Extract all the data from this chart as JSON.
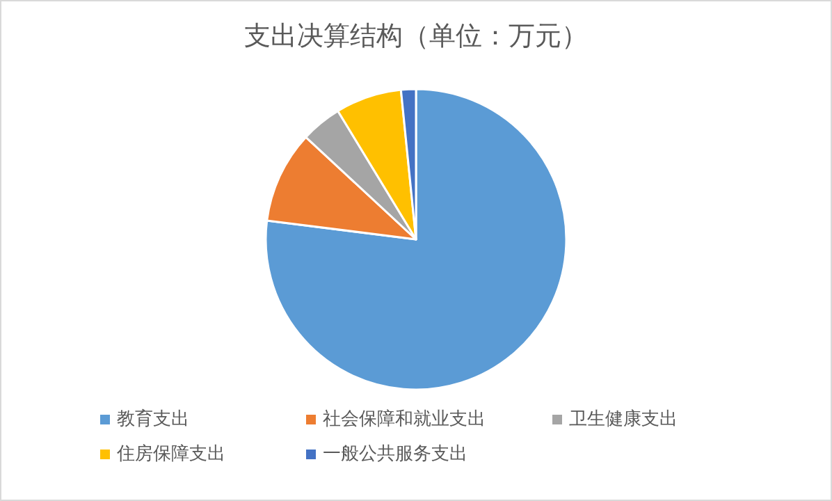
{
  "chart_data": {
    "type": "pie",
    "title": "支出决算结构（单位：万元）",
    "categories": [
      "教育支出",
      "社会保障和就业支出",
      "卫生健康支出",
      "住房保障支出",
      "一般公共服务支出"
    ],
    "values": [
      77.0,
      9.9,
      4.4,
      7.1,
      1.6
    ],
    "colors": [
      "#5b9bd5",
      "#ed7d31",
      "#a5a5a5",
      "#ffc000",
      "#4472c4"
    ],
    "legend": "bottom"
  }
}
